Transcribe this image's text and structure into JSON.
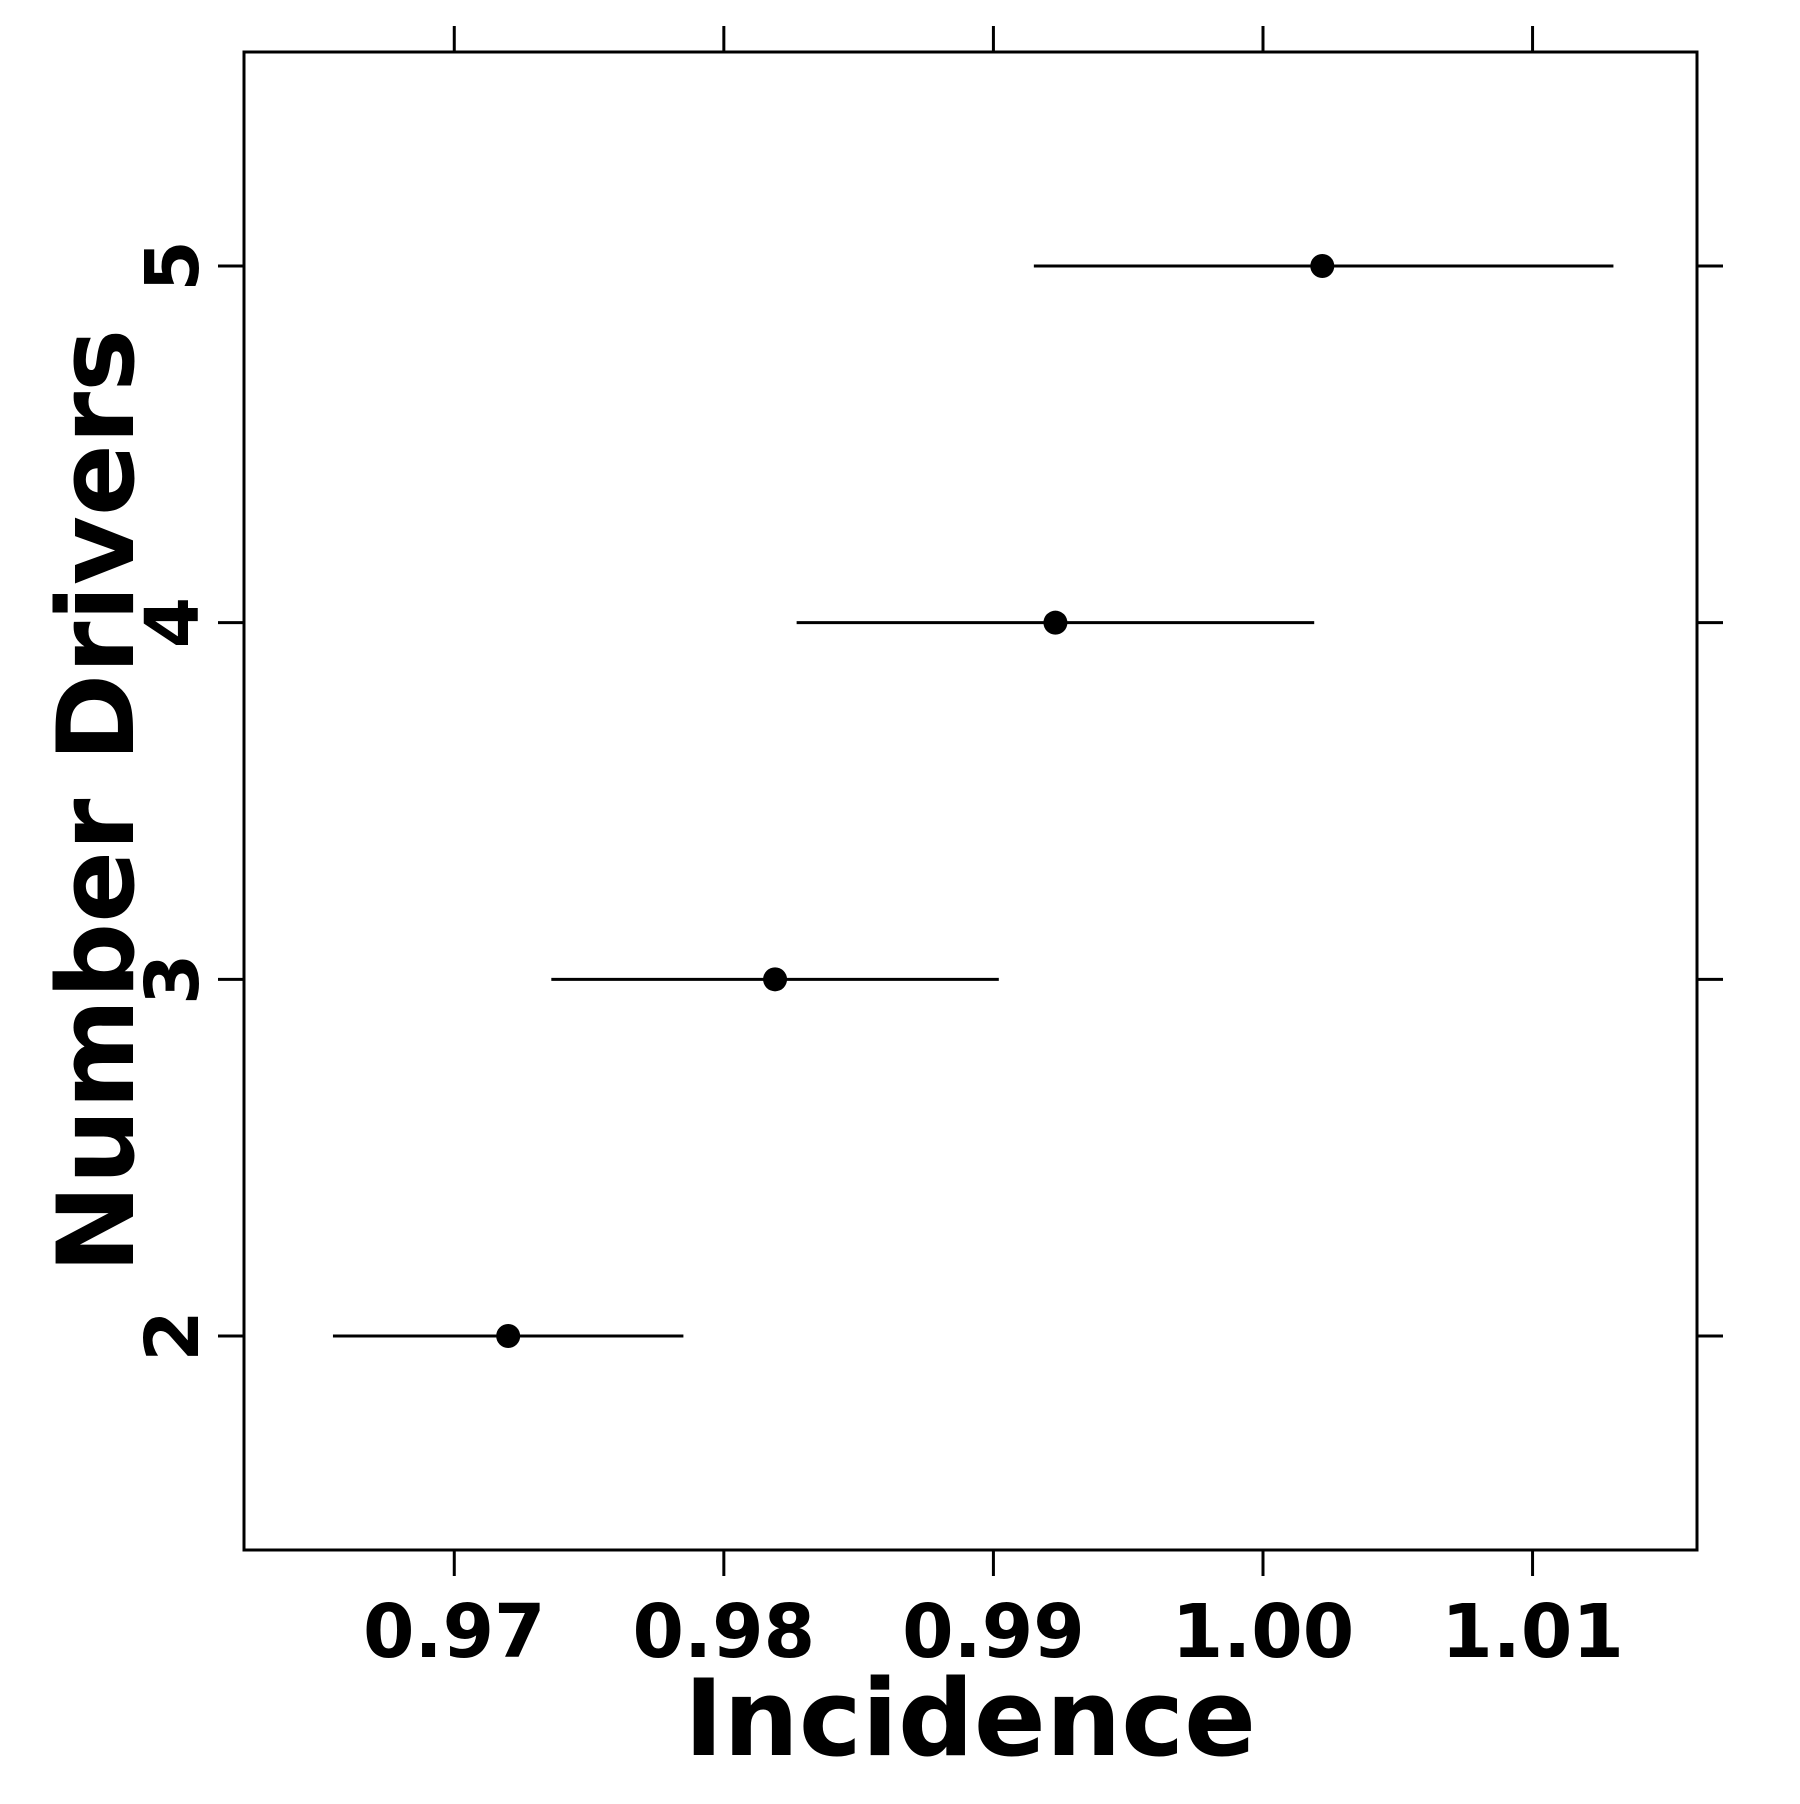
{
  "chart_data": {
    "type": "scatter",
    "title": "",
    "xlabel": "Incidence",
    "ylabel": "Number Drivers",
    "xlim": [
      0.9622,
      1.0161
    ],
    "ylim": [
      1.4,
      5.6
    ],
    "x_ticks": [
      0.97,
      0.98,
      0.99,
      1.0,
      1.01
    ],
    "x_tick_labels": [
      "0.97",
      "0.98",
      "0.99",
      "1.00",
      "1.01"
    ],
    "y_ticks": [
      2,
      3,
      4,
      5
    ],
    "y_tick_labels": [
      "2",
      "3",
      "4",
      "5"
    ],
    "grid": false,
    "legend": "none",
    "series": [
      {
        "points": [
          {
            "y": 2,
            "x": 0.972,
            "lower": 0.9655,
            "upper": 0.9785
          },
          {
            "y": 3,
            "x": 0.9819,
            "lower": 0.9736,
            "upper": 0.9902
          },
          {
            "y": 4,
            "x": 0.9923,
            "lower": 0.9827,
            "upper": 1.0019
          },
          {
            "y": 5,
            "x": 1.0022,
            "lower": 0.9915,
            "upper": 1.013
          }
        ]
      }
    ],
    "colors": {
      "ink": "#000000",
      "background": "#ffffff"
    }
  }
}
